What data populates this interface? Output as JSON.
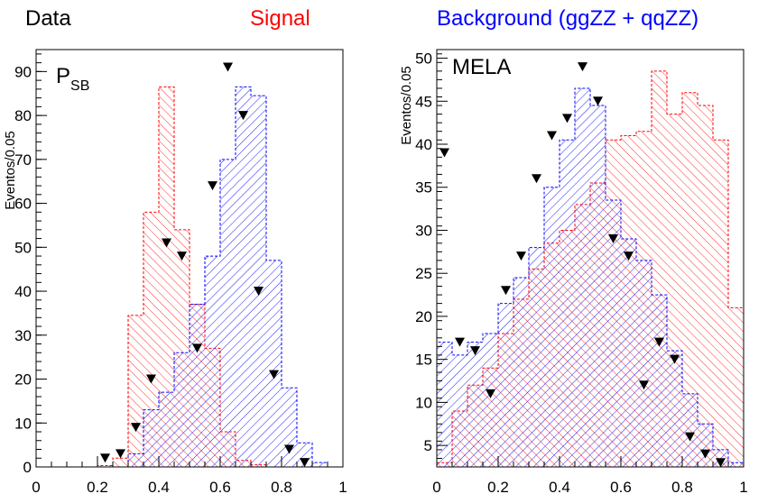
{
  "legend": [
    {
      "label": "Data",
      "color": "#000000"
    },
    {
      "label": "Signal",
      "color": "#ff0000"
    },
    {
      "label": "Background (ggZZ + qqZZ)",
      "color": "#0000ff"
    }
  ],
  "chart_data": [
    {
      "type": "bar",
      "title": "P",
      "title_sub": "SB",
      "ylabel": "Eventos/0.05",
      "xlim": [
        0,
        1
      ],
      "ylim": [
        0,
        95
      ],
      "xticks": [
        "0",
        "0.2",
        "0.4",
        "0.6",
        "0.8",
        "1"
      ],
      "yticks": [
        "0",
        "10",
        "20",
        "30",
        "40",
        "50",
        "60",
        "70",
        "80",
        "90"
      ],
      "bin_width": 0.05,
      "signal": {
        "name": "Signal",
        "color": "#ff0000",
        "bins": [
          [
            0.2,
            0.3
          ],
          [
            0.25,
            2
          ],
          [
            0.3,
            34.5
          ],
          [
            0.35,
            58
          ],
          [
            0.4,
            86.5
          ],
          [
            0.45,
            54
          ],
          [
            0.5,
            37
          ],
          [
            0.55,
            27
          ],
          [
            0.6,
            8
          ],
          [
            0.65,
            1.5
          ],
          [
            0.7,
            0.5
          ]
        ]
      },
      "background": {
        "name": "Background (ggZZ + qqZZ)",
        "color": "#0000ff",
        "bins": [
          [
            0.3,
            3
          ],
          [
            0.35,
            13
          ],
          [
            0.4,
            17
          ],
          [
            0.45,
            26
          ],
          [
            0.5,
            37
          ],
          [
            0.55,
            48
          ],
          [
            0.6,
            70
          ],
          [
            0.65,
            86.5
          ],
          [
            0.7,
            84.5
          ],
          [
            0.75,
            47
          ],
          [
            0.8,
            18
          ],
          [
            0.85,
            5.5
          ],
          [
            0.9,
            1
          ]
        ]
      },
      "data": {
        "name": "Data",
        "points": [
          [
            0.225,
            2
          ],
          [
            0.275,
            3
          ],
          [
            0.325,
            9
          ],
          [
            0.375,
            20
          ],
          [
            0.425,
            51
          ],
          [
            0.475,
            48
          ],
          [
            0.525,
            27
          ],
          [
            0.575,
            64
          ],
          [
            0.625,
            91
          ],
          [
            0.675,
            80
          ],
          [
            0.725,
            40
          ],
          [
            0.775,
            21
          ],
          [
            0.825,
            4
          ],
          [
            0.875,
            1
          ]
        ]
      }
    },
    {
      "type": "bar",
      "title": "MELA",
      "ylabel": "Eventos/0.05",
      "xlim": [
        0,
        1
      ],
      "ylim": [
        2.5,
        51
      ],
      "xticks": [
        "0",
        "0.2",
        "0.4",
        "0.6",
        "0.8",
        "1"
      ],
      "yticks": [
        "5",
        "10",
        "15",
        "20",
        "25",
        "30",
        "35",
        "40",
        "45",
        "50"
      ],
      "bin_width": 0.05,
      "signal": {
        "name": "Signal",
        "color": "#ff0000",
        "bins": [
          [
            0.0,
            3
          ],
          [
            0.05,
            9
          ],
          [
            0.1,
            12
          ],
          [
            0.15,
            14
          ],
          [
            0.2,
            18
          ],
          [
            0.25,
            22
          ],
          [
            0.3,
            25.5
          ],
          [
            0.35,
            28.5
          ],
          [
            0.4,
            30
          ],
          [
            0.45,
            33
          ],
          [
            0.5,
            35.5
          ],
          [
            0.55,
            40.5
          ],
          [
            0.6,
            41
          ],
          [
            0.65,
            41.5
          ],
          [
            0.7,
            48.5
          ],
          [
            0.75,
            43.5
          ],
          [
            0.8,
            46
          ],
          [
            0.85,
            44.5
          ],
          [
            0.9,
            40.5
          ],
          [
            0.95,
            21
          ]
        ]
      },
      "background": {
        "name": "Background (ggZZ + qqZZ)",
        "color": "#0000ff",
        "bins": [
          [
            0.0,
            17
          ],
          [
            0.05,
            15.5
          ],
          [
            0.1,
            17
          ],
          [
            0.15,
            18
          ],
          [
            0.2,
            21.5
          ],
          [
            0.25,
            24.5
          ],
          [
            0.3,
            28
          ],
          [
            0.35,
            35
          ],
          [
            0.4,
            40.5
          ],
          [
            0.45,
            46.5
          ],
          [
            0.5,
            44.5
          ],
          [
            0.55,
            33.5
          ],
          [
            0.6,
            29
          ],
          [
            0.65,
            26.5
          ],
          [
            0.7,
            22.5
          ],
          [
            0.75,
            16
          ],
          [
            0.8,
            11
          ],
          [
            0.85,
            7.5
          ],
          [
            0.9,
            4.5
          ],
          [
            0.95,
            3
          ]
        ]
      },
      "data": {
        "name": "Data",
        "points": [
          [
            0.025,
            39
          ],
          [
            0.075,
            17
          ],
          [
            0.125,
            16
          ],
          [
            0.175,
            11
          ],
          [
            0.225,
            23
          ],
          [
            0.275,
            27
          ],
          [
            0.325,
            36
          ],
          [
            0.375,
            41
          ],
          [
            0.425,
            43
          ],
          [
            0.475,
            49
          ],
          [
            0.525,
            45
          ],
          [
            0.575,
            29
          ],
          [
            0.625,
            27
          ],
          [
            0.675,
            12
          ],
          [
            0.725,
            17
          ],
          [
            0.775,
            15
          ],
          [
            0.825,
            6
          ],
          [
            0.875,
            4
          ],
          [
            0.925,
            3
          ]
        ]
      }
    }
  ]
}
